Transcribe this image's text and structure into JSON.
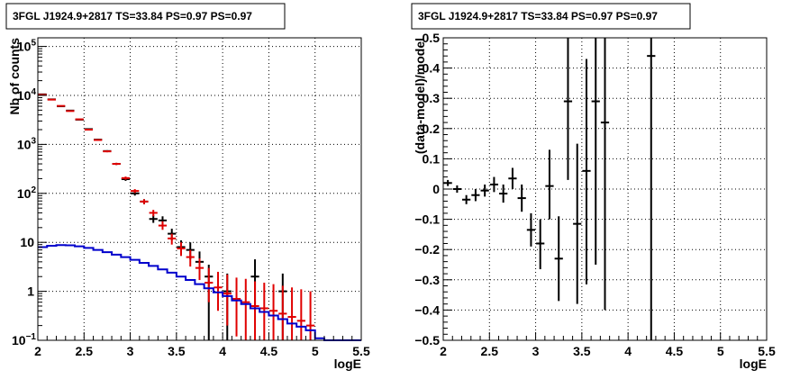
{
  "chart_data": [
    {
      "type": "scatter",
      "title": "3FGL J1924.9+2817 TS=33.84 PS=0.97 PS=0.97",
      "xlabel": "logE",
      "ylabel": "Nb of counts",
      "xlim": [
        2,
        5.5
      ],
      "ylim": [
        0.1,
        150000
      ],
      "y_scale": "log",
      "grid": true,
      "x_ticks": [
        "2",
        "2.5",
        "3",
        "3.5",
        "4",
        "4.5",
        "5",
        "5.5"
      ],
      "y_ticks": [
        {
          "value": 0.1,
          "label": "10",
          "sup": "−1"
        },
        {
          "value": 1,
          "label": "1",
          "sup": ""
        },
        {
          "value": 10,
          "label": "10",
          "sup": ""
        },
        {
          "value": 100,
          "label": "10",
          "sup": "2"
        },
        {
          "value": 1000,
          "label": "10",
          "sup": "3"
        },
        {
          "value": 10000,
          "label": "10",
          "sup": "4"
        },
        {
          "value": 100000,
          "label": "10",
          "sup": "5"
        }
      ],
      "series": [
        {
          "color": "#000000",
          "style": "points",
          "points": [
            {
              "x": 2.05,
              "y": 10500,
              "lo": 10300,
              "hi": 10700
            },
            {
              "x": 2.15,
              "y": 8300,
              "lo": 8150,
              "hi": 8450
            },
            {
              "x": 2.25,
              "y": 6000,
              "lo": 5900,
              "hi": 6100
            },
            {
              "x": 2.35,
              "y": 4900,
              "lo": 4800,
              "hi": 5000
            },
            {
              "x": 2.45,
              "y": 3200,
              "lo": 3130,
              "hi": 3270
            },
            {
              "x": 2.55,
              "y": 2050,
              "lo": 2000,
              "hi": 2100
            },
            {
              "x": 2.65,
              "y": 1250,
              "lo": 1210,
              "hi": 1290
            },
            {
              "x": 2.75,
              "y": 730,
              "lo": 700,
              "hi": 760
            },
            {
              "x": 2.85,
              "y": 400,
              "lo": 380,
              "hi": 420
            },
            {
              "x": 2.95,
              "y": 195,
              "lo": 180,
              "hi": 210
            },
            {
              "x": 3.05,
              "y": 100,
              "lo": 90,
              "hi": 110
            },
            {
              "x": 3.15,
              "y": 68,
              "lo": 60,
              "hi": 76
            },
            {
              "x": 3.25,
              "y": 30,
              "lo": 25,
              "hi": 36
            },
            {
              "x": 3.35,
              "y": 28,
              "lo": 23,
              "hi": 34
            },
            {
              "x": 3.45,
              "y": 15,
              "lo": 11,
              "hi": 19
            },
            {
              "x": 3.55,
              "y": 8,
              "lo": 5.3,
              "hi": 11
            },
            {
              "x": 3.65,
              "y": 7,
              "lo": 4.5,
              "hi": 10
            },
            {
              "x": 3.75,
              "y": 4,
              "lo": 2.2,
              "hi": 6.5
            },
            {
              "x": 3.85,
              "y": 2,
              "lo": 0.1,
              "hi": 3.5
            },
            {
              "x": 4.05,
              "y": 1,
              "lo": 0.1,
              "hi": 2.3
            },
            {
              "x": 4.35,
              "y": 2,
              "lo": 0.4,
              "hi": 4.5
            },
            {
              "x": 4.65,
              "y": 1,
              "lo": 0.1,
              "hi": 2.3
            }
          ]
        },
        {
          "color": "#e00000",
          "style": "points",
          "points": [
            {
              "x": 2.05,
              "y": 10300,
              "lo": 10100,
              "hi": 10500
            },
            {
              "x": 2.15,
              "y": 8200,
              "lo": 8050,
              "hi": 8350
            },
            {
              "x": 2.25,
              "y": 6100,
              "lo": 6000,
              "hi": 6200
            },
            {
              "x": 2.35,
              "y": 4800,
              "lo": 4700,
              "hi": 4900
            },
            {
              "x": 2.45,
              "y": 3250,
              "lo": 3180,
              "hi": 3320
            },
            {
              "x": 2.55,
              "y": 2000,
              "lo": 1950,
              "hi": 2050
            },
            {
              "x": 2.65,
              "y": 1230,
              "lo": 1190,
              "hi": 1270
            },
            {
              "x": 2.75,
              "y": 720,
              "lo": 690,
              "hi": 750
            },
            {
              "x": 2.85,
              "y": 400,
              "lo": 380,
              "hi": 420
            },
            {
              "x": 2.95,
              "y": 205,
              "lo": 190,
              "hi": 220
            },
            {
              "x": 3.05,
              "y": 112,
              "lo": 102,
              "hi": 122
            },
            {
              "x": 3.15,
              "y": 68,
              "lo": 60,
              "hi": 76
            },
            {
              "x": 3.25,
              "y": 40,
              "lo": 34,
              "hi": 46
            },
            {
              "x": 3.35,
              "y": 22,
              "lo": 18,
              "hi": 27
            },
            {
              "x": 3.45,
              "y": 12,
              "lo": 9,
              "hi": 15
            },
            {
              "x": 3.55,
              "y": 7.5,
              "lo": 5.3,
              "hi": 10
            },
            {
              "x": 3.65,
              "y": 5,
              "lo": 3.2,
              "hi": 7
            },
            {
              "x": 3.75,
              "y": 3,
              "lo": 1.7,
              "hi": 4.7
            },
            {
              "x": 3.85,
              "y": 1.5,
              "lo": 0.6,
              "hi": 3
            },
            {
              "x": 3.95,
              "y": 1.2,
              "lo": 0.4,
              "hi": 2.5
            },
            {
              "x": 4.05,
              "y": 0.9,
              "lo": 0.2,
              "hi": 2.2
            },
            {
              "x": 4.15,
              "y": 0.7,
              "lo": 0.12,
              "hi": 1.9
            },
            {
              "x": 4.25,
              "y": 0.6,
              "lo": 0.1,
              "hi": 1.8
            },
            {
              "x": 4.35,
              "y": 0.5,
              "lo": 0.1,
              "hi": 1.6
            },
            {
              "x": 4.45,
              "y": 0.45,
              "lo": 0.1,
              "hi": 1.5
            },
            {
              "x": 4.55,
              "y": 0.4,
              "lo": 0.1,
              "hi": 1.4
            },
            {
              "x": 4.65,
              "y": 0.35,
              "lo": 0.1,
              "hi": 1.3
            },
            {
              "x": 4.75,
              "y": 0.3,
              "lo": 0.1,
              "hi": 1.2
            },
            {
              "x": 4.85,
              "y": 0.25,
              "lo": 0.1,
              "hi": 1.1
            },
            {
              "x": 4.95,
              "y": 0.2,
              "lo": 0.1,
              "hi": 1.0
            }
          ]
        },
        {
          "color": "#0000cc",
          "style": "step",
          "edges": [
            2.0,
            2.1,
            2.2,
            2.3,
            2.4,
            2.5,
            2.6,
            2.7,
            2.8,
            2.9,
            3.0,
            3.1,
            3.2,
            3.3,
            3.4,
            3.5,
            3.6,
            3.7,
            3.8,
            3.9,
            4.0,
            4.1,
            4.2,
            4.3,
            4.4,
            4.5,
            4.6,
            4.7,
            4.8,
            4.9,
            5.0,
            5.1,
            5.2,
            5.3,
            5.4,
            5.5
          ],
          "values": [
            8.0,
            8.5,
            8.8,
            8.7,
            8.3,
            7.7,
            7.0,
            6.3,
            5.6,
            5.0,
            4.4,
            3.8,
            3.3,
            2.8,
            2.4,
            2.0,
            1.7,
            1.4,
            1.15,
            0.95,
            0.8,
            0.65,
            0.55,
            0.45,
            0.38,
            0.32,
            0.27,
            0.22,
            0.19,
            0.16,
            0.11,
            0.1,
            0.1,
            0.1,
            0.1
          ]
        }
      ]
    },
    {
      "type": "scatter",
      "title": "3FGL J1924.9+2817 TS=33.84 PS=0.97 PS=0.97",
      "xlabel": "logE",
      "ylabel": "(data-model)/model",
      "xlim": [
        2,
        5.5
      ],
      "ylim": [
        -0.5,
        0.5
      ],
      "y_scale": "linear",
      "grid": true,
      "x_ticks": [
        "2",
        "2.5",
        "3",
        "3.5",
        "4",
        "4.5",
        "5",
        "5.5"
      ],
      "y_ticks": [
        "−0.5",
        "−0.4",
        "−0.3",
        "−0.2",
        "−0.1",
        "0",
        "0.1",
        "0.2",
        "0.3",
        "0.4",
        "0.5"
      ],
      "series": [
        {
          "color": "#000000",
          "style": "points",
          "points": [
            {
              "x": 2.05,
              "y": 0.02,
              "lo": 0.01,
              "hi": 0.03
            },
            {
              "x": 2.15,
              "y": 0.0,
              "lo": -0.012,
              "hi": 0.012
            },
            {
              "x": 2.25,
              "y": -0.035,
              "lo": -0.05,
              "hi": -0.02
            },
            {
              "x": 2.35,
              "y": -0.02,
              "lo": -0.04,
              "hi": 0.0
            },
            {
              "x": 2.45,
              "y": -0.005,
              "lo": -0.025,
              "hi": 0.015
            },
            {
              "x": 2.55,
              "y": 0.015,
              "lo": -0.01,
              "hi": 0.04
            },
            {
              "x": 2.65,
              "y": -0.015,
              "lo": -0.045,
              "hi": 0.015
            },
            {
              "x": 2.75,
              "y": 0.035,
              "lo": 0.0,
              "hi": 0.07
            },
            {
              "x": 2.85,
              "y": -0.03,
              "lo": -0.075,
              "hi": 0.015
            },
            {
              "x": 2.95,
              "y": -0.135,
              "lo": -0.19,
              "hi": -0.08
            },
            {
              "x": 3.05,
              "y": -0.18,
              "lo": -0.265,
              "hi": -0.1
            },
            {
              "x": 3.15,
              "y": 0.01,
              "lo": -0.1,
              "hi": 0.13
            },
            {
              "x": 3.25,
              "y": -0.23,
              "lo": -0.37,
              "hi": -0.09
            },
            {
              "x": 3.35,
              "y": 0.29,
              "lo": 0.03,
              "hi": 0.5
            },
            {
              "x": 3.45,
              "y": -0.115,
              "lo": -0.38,
              "hi": 0.15
            },
            {
              "x": 3.55,
              "y": 0.06,
              "lo": -0.315,
              "hi": 0.43
            },
            {
              "x": 3.65,
              "y": 0.29,
              "lo": -0.25,
              "hi": 0.5
            },
            {
              "x": 3.75,
              "y": 0.22,
              "lo": -0.4,
              "hi": 0.5
            },
            {
              "x": 4.25,
              "y": 0.44,
              "lo": -0.5,
              "hi": 0.5
            }
          ]
        }
      ]
    }
  ]
}
